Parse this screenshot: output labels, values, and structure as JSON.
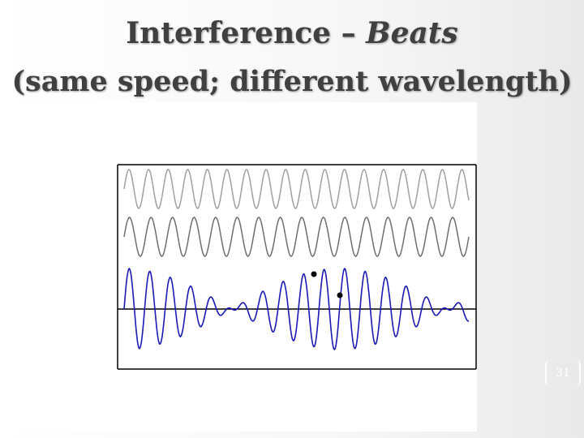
{
  "title": {
    "line1_main": "Interference – ",
    "line1_emph": "Beats",
    "line2": "(same speed; different wavelength)"
  },
  "page_number": "31",
  "colors": {
    "wave1": "#a0a0a0",
    "wave2": "#6e6e6e",
    "sum": "#1a1ab4",
    "axis": "#000000",
    "title": "#404040"
  },
  "chart_data": {
    "type": "line",
    "grid": false,
    "series": [
      {
        "role": "wave-1",
        "cycles": 17.6,
        "amplitude": 1,
        "phase": 0
      },
      {
        "role": "wave-2",
        "cycles": 16.0,
        "amplitude": 1,
        "phase": 0
      },
      {
        "role": "superposition",
        "formula": "wave-1 + wave-2"
      }
    ],
    "markers": 2
  }
}
